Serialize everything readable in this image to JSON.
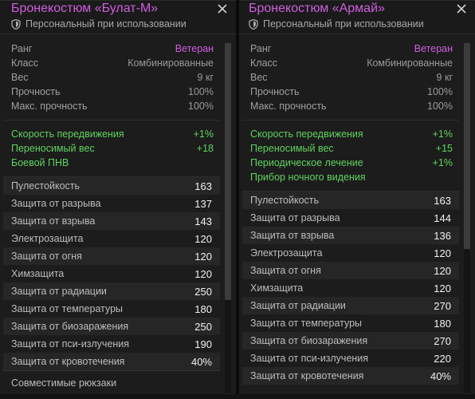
{
  "left": {
    "title": "Бронекостюм «Булат-М»",
    "subtitle": "Персональный при использовании",
    "stats": [
      {
        "label": "Ранг",
        "value": "Ветеран",
        "rank": true
      },
      {
        "label": "Класс",
        "value": "Комбинированные"
      },
      {
        "label": "Вес",
        "value": "9 кг"
      },
      {
        "label": "Прочность",
        "value": "100%"
      },
      {
        "label": "Макс. прочность",
        "value": "100%"
      }
    ],
    "bonuses": [
      {
        "label": "Скорость передвижения",
        "value": "+1%"
      },
      {
        "label": "Переносимый вес",
        "value": "+18"
      },
      {
        "label": "Боевой ПНВ",
        "value": ""
      }
    ],
    "protections": [
      {
        "label": "Пулестойкость",
        "value": "163"
      },
      {
        "label": "Защита от разрыва",
        "value": "137"
      },
      {
        "label": "Защита от взрыва",
        "value": "143"
      },
      {
        "label": "Электрозащита",
        "value": "120"
      },
      {
        "label": "Защита от огня",
        "value": "120"
      },
      {
        "label": "Химзащита",
        "value": "120"
      },
      {
        "label": "Защита от радиации",
        "value": "250"
      },
      {
        "label": "Защита от температуры",
        "value": "180"
      },
      {
        "label": "Защита от биозаражения",
        "value": "250"
      },
      {
        "label": "Защита от пси-излучения",
        "value": "190"
      },
      {
        "label": "Защита от кровотечения",
        "value": "40%"
      }
    ],
    "footer": "Совместимые рюкзаки"
  },
  "right": {
    "title": "Бронекостюм «Армай»",
    "subtitle": "Персональный при использовании",
    "stats": [
      {
        "label": "Ранг",
        "value": "Ветеран",
        "rank": true
      },
      {
        "label": "Класс",
        "value": "Комбинированные"
      },
      {
        "label": "Вес",
        "value": "9 кг"
      },
      {
        "label": "Прочность",
        "value": "100%"
      },
      {
        "label": "Макс. прочность",
        "value": "100%"
      }
    ],
    "bonuses": [
      {
        "label": "Скорость передвижения",
        "value": "+1%"
      },
      {
        "label": "Переносимый вес",
        "value": "+15"
      },
      {
        "label": "Периодическое лечение",
        "value": "+1%"
      },
      {
        "label": "Прибор ночного видения",
        "value": ""
      }
    ],
    "protections": [
      {
        "label": "Пулестойкость",
        "value": "163"
      },
      {
        "label": "Защита от разрыва",
        "value": "144"
      },
      {
        "label": "Защита от взрыва",
        "value": "136"
      },
      {
        "label": "Электрозащита",
        "value": "120"
      },
      {
        "label": "Защита от огня",
        "value": "120"
      },
      {
        "label": "Химзащита",
        "value": "120"
      },
      {
        "label": "Защита от радиации",
        "value": "270"
      },
      {
        "label": "Защита от температуры",
        "value": "180"
      },
      {
        "label": "Защита от биозаражения",
        "value": "270"
      },
      {
        "label": "Защита от пси-излучения",
        "value": "220"
      },
      {
        "label": "Защита от кровотечения",
        "value": "40%"
      }
    ]
  },
  "icons": {
    "shield": "shield-icon",
    "close": "close-icon"
  },
  "colors": {
    "title": "#d05ee0",
    "bonus": "#5fd35f",
    "background": "#1c1c1c"
  }
}
